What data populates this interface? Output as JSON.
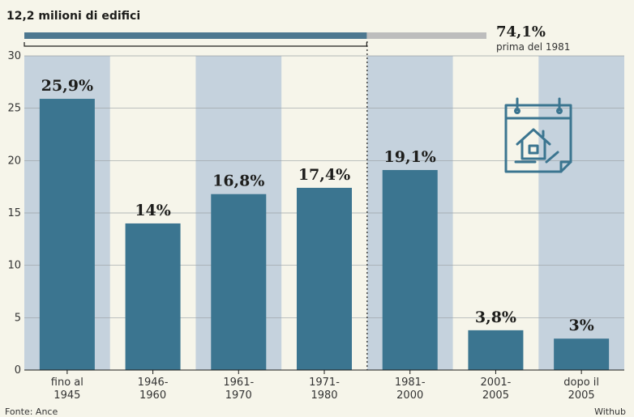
{
  "header": {
    "subtitle": "12,2 milioni di edifici"
  },
  "share": {
    "value": "74,1%",
    "label": "prima del 1981",
    "fraction": 0.741
  },
  "footer": {
    "source": "Fonte: Ance",
    "credit": "Withub"
  },
  "colors": {
    "bar": "#3b7590",
    "band": "#c5d2dd",
    "background": "#f6f5ea",
    "progress_fill": "#4d7890",
    "progress_rest": "#bdbdbd"
  },
  "icon": "calendar-house-icon",
  "chart_data": {
    "type": "bar",
    "categories": [
      [
        "fino al",
        "1945"
      ],
      [
        "1946-",
        "1960"
      ],
      [
        "1961-",
        "1970"
      ],
      [
        "1971-",
        "1980"
      ],
      [
        "1981-",
        "2000"
      ],
      [
        "2001-",
        "2005"
      ],
      [
        "dopo il",
        "2005"
      ]
    ],
    "values": [
      25.9,
      14,
      16.8,
      17.4,
      19.1,
      3.8,
      3
    ],
    "data_labels": [
      "25,9%",
      "14%",
      "16,8%",
      "17,4%",
      "19,1%",
      "3,8%",
      "3%"
    ],
    "ylim": [
      0,
      30
    ],
    "yticks": [
      0,
      5,
      10,
      15,
      20,
      25,
      30
    ],
    "grid": true
  }
}
